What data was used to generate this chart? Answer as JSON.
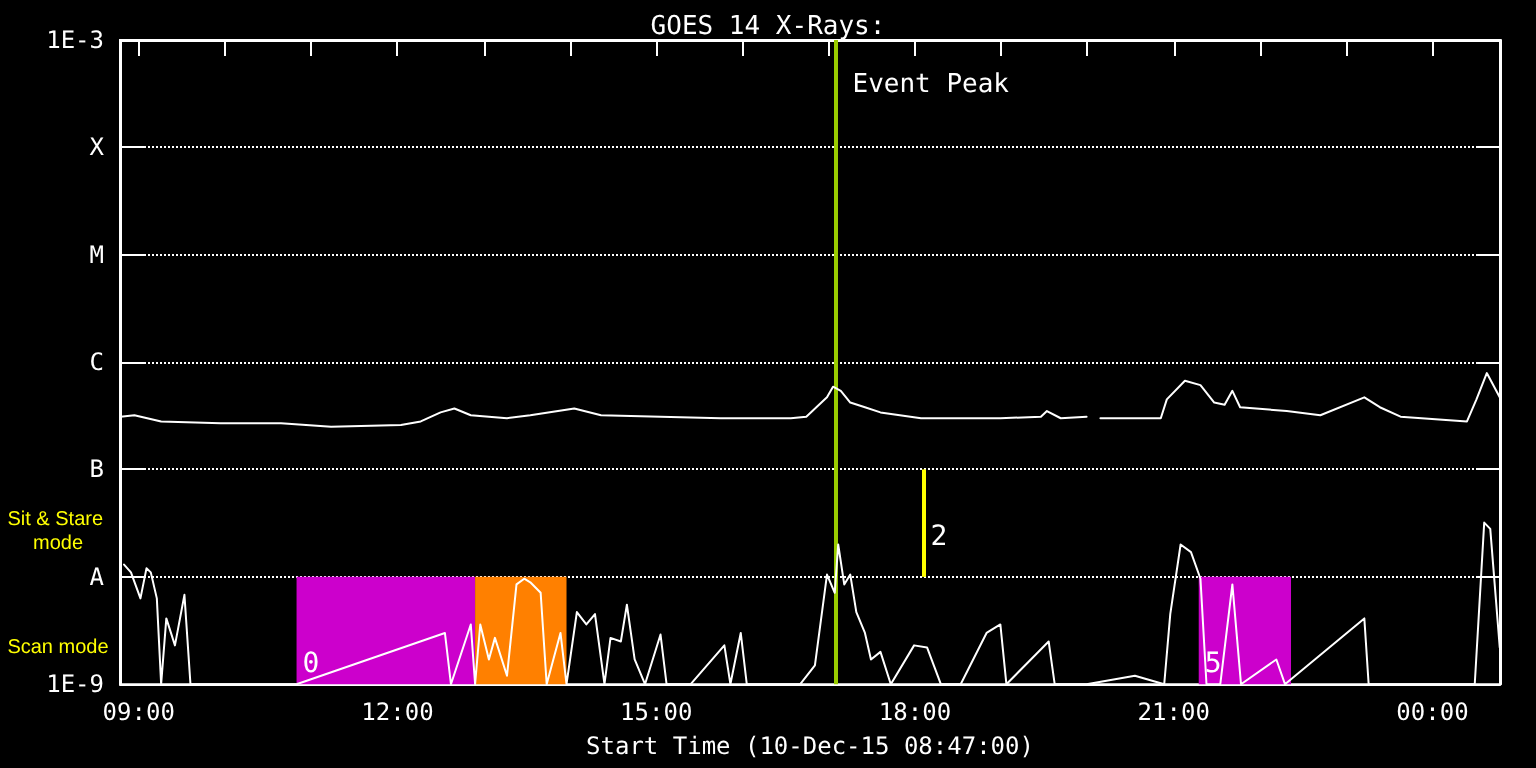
{
  "chart_data": {
    "type": "line",
    "title": "GOES 14 X-Rays:",
    "xlabel": "Start Time (10-Dec-15 08:47:00)",
    "annotations": [
      "Sit & Stare mode",
      "Scan mode",
      "2"
    ],
    "xlim": [
      8.783,
      24.783
    ],
    "xticks": [
      {
        "value": 9,
        "label": "09:00"
      },
      {
        "value": 10,
        "label": null
      },
      {
        "value": 11,
        "label": null
      },
      {
        "value": 12,
        "label": "12:00"
      },
      {
        "value": 13,
        "label": null
      },
      {
        "value": 14,
        "label": null
      },
      {
        "value": 15,
        "label": "15:00"
      },
      {
        "value": 16,
        "label": null
      },
      {
        "value": 17,
        "label": null
      },
      {
        "value": 18,
        "label": "18:00"
      },
      {
        "value": 19,
        "label": null
      },
      {
        "value": 20,
        "label": null
      },
      {
        "value": 21,
        "label": "21:00"
      },
      {
        "value": 22,
        "label": null
      },
      {
        "value": 23,
        "label": null
      },
      {
        "value": 24,
        "label": "00:00"
      }
    ],
    "log": "y",
    "ylim": [
      1e-09,
      0.001
    ],
    "yticks": [
      {
        "value": 1e-09,
        "label": "1E-9"
      },
      {
        "value": 1e-08,
        "label": "A"
      },
      {
        "value": 1e-07,
        "label": "B"
      },
      {
        "value": 1e-06,
        "label": "C"
      },
      {
        "value": 1e-05,
        "label": "M"
      },
      {
        "value": 0.0001,
        "label": "X"
      },
      {
        "value": 0.001,
        "label": "1E-3"
      }
    ],
    "grid": "y",
    "marker": "none",
    "line_style": "solid",
    "series": [
      {
        "color": "#ffffff",
        "x": [
          8.79,
          8.95,
          9.26,
          9.95,
          10.65,
          11.23,
          12.04,
          12.27,
          12.5,
          12.66,
          12.85,
          13.27,
          13.54,
          14.05,
          14.36,
          15.05,
          15.75,
          16.56,
          16.74,
          16.98,
          17.05,
          17.14,
          17.25,
          17.42,
          17.6,
          18.07,
          18.53,
          18.99,
          19.46,
          19.53,
          19.69,
          19.99,
          20.08,
          20.15,
          20.38,
          20.85,
          20.92,
          21.13,
          21.31,
          21.47,
          21.59,
          21.68,
          21.77,
          22.31,
          22.7,
          23.21,
          23.39,
          23.63,
          24.4,
          24.51,
          24.63,
          24.78
        ],
        "values": [
          3.1e-07,
          3.2e-07,
          2.8e-07,
          2.7e-07,
          2.7e-07,
          2.5e-07,
          2.6e-07,
          2.8e-07,
          3.4e-07,
          3.7e-07,
          3.2e-07,
          3e-07,
          3.2e-07,
          3.7e-07,
          3.2e-07,
          3.1e-07,
          3e-07,
          3e-07,
          3.1e-07,
          4.7e-07,
          5.9e-07,
          5.4e-07,
          4.2e-07,
          3.8e-07,
          3.4e-07,
          3e-07,
          3e-07,
          3e-07,
          3.1e-07,
          3.5e-07,
          3e-07,
          3.1e-07,
          null,
          3e-07,
          3e-07,
          3e-07,
          4.5e-07,
          6.7e-07,
          6.1e-07,
          4.2e-07,
          4e-07,
          5.4e-07,
          3.8e-07,
          3.5e-07,
          3.2e-07,
          4.7e-07,
          3.8e-07,
          3.1e-07,
          2.8e-07,
          4.5e-07,
          7.9e-07,
          4.7e-07
        ]
      },
      {
        "color": "#ffffff",
        "x": [
          8.83,
          8.91,
          9.02,
          9.09,
          9.14,
          9.21,
          9.26,
          9.32,
          9.42,
          9.53,
          9.6,
          9.67,
          9.88,
          10.18,
          10.83,
          12.55,
          12.62,
          12.85,
          12.9,
          12.96,
          13.06,
          13.13,
          13.27,
          13.38,
          13.47,
          13.54,
          13.66,
          13.73,
          13.89,
          13.96,
          14.08,
          14.19,
          14.29,
          14.4,
          14.47,
          14.59,
          14.66,
          14.75,
          14.87,
          15.05,
          15.12,
          15.4,
          15.79,
          15.86,
          15.98,
          16.05,
          16.67,
          16.84,
          16.98,
          17.07,
          17.11,
          17.18,
          17.25,
          17.32,
          17.42,
          17.49,
          17.6,
          17.72,
          17.99,
          18.14,
          18.3,
          18.53,
          18.83,
          18.99,
          19.06,
          19.55,
          19.62,
          19.99,
          20.55,
          20.89,
          20.96,
          21.08,
          21.2,
          21.31,
          21.38,
          21.54,
          21.68,
          21.78,
          22.19,
          22.29,
          23.21,
          23.26,
          24.49,
          24.6,
          24.67,
          24.78
        ],
        "values": [
          1.3e-08,
          1.1e-08,
          6.3e-09,
          1.2e-08,
          1.1e-08,
          6.3e-09,
          1e-09,
          4.1e-09,
          2.3e-09,
          6.8e-09,
          1e-09,
          1e-09,
          1e-09,
          1e-09,
          1e-09,
          3e-09,
          1e-09,
          3.6e-09,
          1e-09,
          3.6e-09,
          1.7e-09,
          2.7e-09,
          1.2e-09,
          8.5e-09,
          9.6e-09,
          8.9e-09,
          7.1e-09,
          1e-09,
          3e-09,
          1e-09,
          4.7e-09,
          3.6e-09,
          4.5e-09,
          1e-09,
          2.7e-09,
          2.5e-09,
          5.5e-09,
          1.7e-09,
          1e-09,
          2.9e-09,
          1e-09,
          1e-09,
          2.3e-09,
          1e-09,
          3e-09,
          1e-09,
          1e-09,
          1.5e-09,
          1.05e-08,
          7.1e-09,
          2e-08,
          8.5e-09,
          1.05e-08,
          4.7e-09,
          3e-09,
          1.7e-09,
          2e-09,
          1e-09,
          2.3e-09,
          2.2e-09,
          1e-09,
          1e-09,
          3e-09,
          3.6e-09,
          1e-09,
          2.5e-09,
          1e-09,
          1e-09,
          1.2e-09,
          1e-09,
          4.5e-09,
          2e-08,
          1.7e-08,
          9.6e-09,
          1e-09,
          1e-09,
          8.5e-09,
          1e-09,
          1.7e-09,
          1e-09,
          4.1e-09,
          1e-09,
          1e-09,
          3.2e-08,
          2.8e-08,
          2.2e-09
        ]
      }
    ],
    "bands": [
      {
        "axis": "x",
        "from": 10.83,
        "to": 12.9,
        "label": "0",
        "color": "#cc00cc"
      },
      {
        "axis": "x",
        "from": 12.9,
        "to": 13.96,
        "label": null,
        "color": "#ff8000"
      },
      {
        "axis": "x",
        "from": 21.29,
        "to": 22.36,
        "label": "5",
        "color": "#cc00cc"
      }
    ],
    "ref_lines": [
      {
        "axis": "x",
        "value": 17.09,
        "label": "Event Peak",
        "color": "#99cc00"
      },
      {
        "axis": "x",
        "value": 18.11,
        "color": "#ffff00"
      }
    ]
  }
}
